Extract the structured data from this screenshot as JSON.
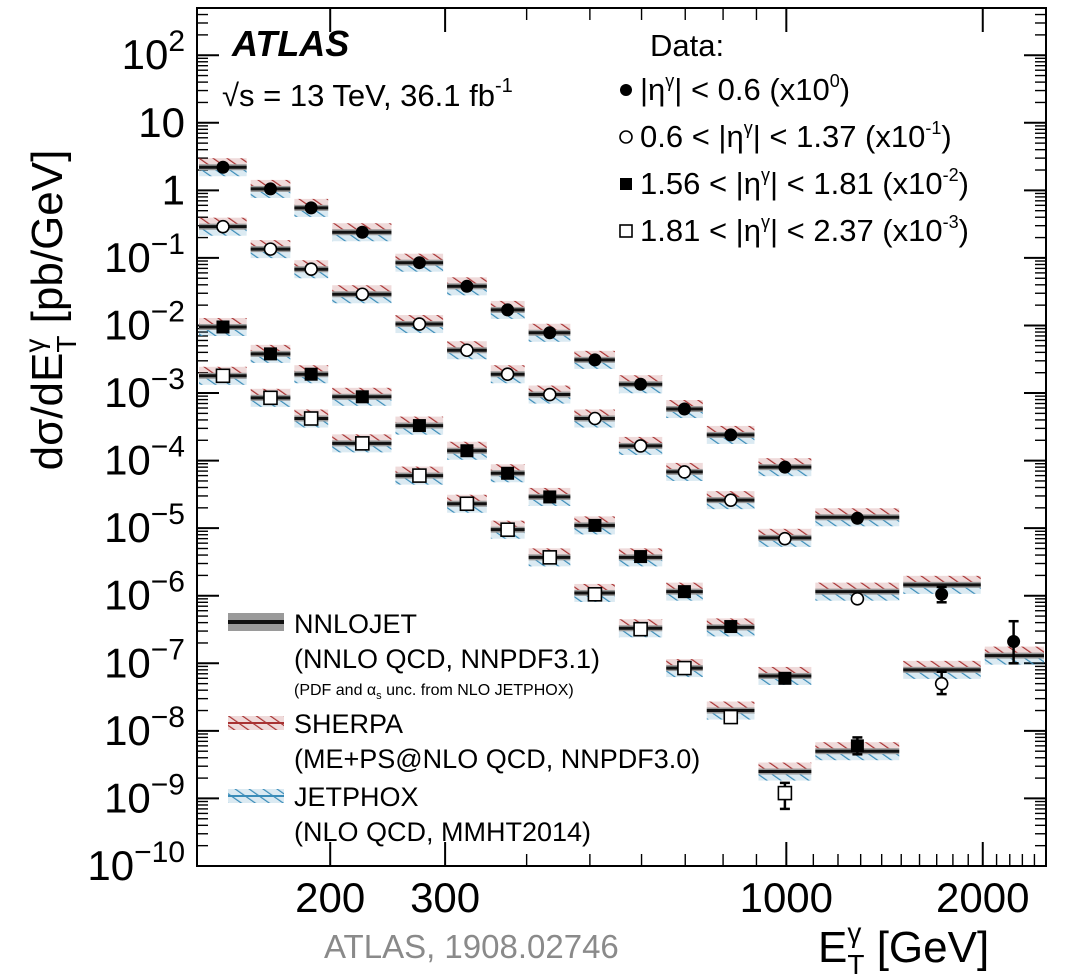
{
  "chart_data": {
    "type": "scatter",
    "x_scale": "log",
    "y_scale": "log",
    "xlim": [
      125,
      2500
    ],
    "ylim": [
      1e-10,
      500
    ],
    "xlabel": "E",
    "xlabel_sup": "γ",
    "xlabel_sub": "T",
    "xlabel_unit": " [GeV]",
    "ylabel_prefix": "dσ/dE",
    "ylabel_sup": "γ",
    "ylabel_sub": "T",
    "ylabel_unit": " [pb/GeV]",
    "x_tick_labels": [
      {
        "value": 200,
        "label": "200"
      },
      {
        "value": 300,
        "label": "300"
      },
      {
        "value": 1000,
        "label": "1000"
      },
      {
        "value": 2000,
        "label": "2000"
      }
    ],
    "y_tick_labels": [
      {
        "value": 100,
        "base": "10",
        "exp": "2"
      },
      {
        "value": 10,
        "base": "10",
        "exp": ""
      },
      {
        "value": 1,
        "base": "1",
        "exp": ""
      },
      {
        "value": 0.1,
        "base": "10",
        "exp": "−1"
      },
      {
        "value": 0.01,
        "base": "10",
        "exp": "−2"
      },
      {
        "value": 0.001,
        "base": "10",
        "exp": "−3"
      },
      {
        "value": 0.0001,
        "base": "10",
        "exp": "−4"
      },
      {
        "value": 1e-05,
        "base": "10",
        "exp": "−5"
      },
      {
        "value": 1e-06,
        "base": "10",
        "exp": "−6"
      },
      {
        "value": 1e-07,
        "base": "10",
        "exp": "−7"
      },
      {
        "value": 1e-08,
        "base": "10",
        "exp": "−8"
      },
      {
        "value": 1e-09,
        "base": "10",
        "exp": "−9"
      },
      {
        "value": 1e-10,
        "base": "10",
        "exp": "−10"
      }
    ],
    "experiment_label": "ATLAS",
    "energy_label": {
      "text": "√s = 13 TeV, 36.1 fb",
      "sup": "-1"
    },
    "data_legend_title": "Data:",
    "citation": "ATLAS, 1908.02746",
    "bins": [
      {
        "lo": 125,
        "hi": 150
      },
      {
        "lo": 150,
        "hi": 175
      },
      {
        "lo": 175,
        "hi": 200
      },
      {
        "lo": 200,
        "hi": 250
      },
      {
        "lo": 250,
        "hi": 300
      },
      {
        "lo": 300,
        "hi": 350
      },
      {
        "lo": 350,
        "hi": 400
      },
      {
        "lo": 400,
        "hi": 470
      },
      {
        "lo": 470,
        "hi": 550
      },
      {
        "lo": 550,
        "hi": 650
      },
      {
        "lo": 650,
        "hi": 750
      },
      {
        "lo": 750,
        "hi": 900
      },
      {
        "lo": 900,
        "hi": 1100
      },
      {
        "lo": 1100,
        "hi": 1500
      },
      {
        "lo": 1500,
        "hi": 2000
      },
      {
        "lo": 2000,
        "hi": 2500
      }
    ],
    "series": [
      {
        "marker": "filled-circle",
        "legend": {
          "pre": "|η",
          "sup1": "γ",
          "mid": "| < 0.6 (x10",
          "sup2": "0",
          "post": ")"
        },
        "points": [
          {
            "x": 137,
            "y": 2.2,
            "err": null
          },
          {
            "x": 162,
            "y": 1.05,
            "err": null
          },
          {
            "x": 187,
            "y": 0.55,
            "err": null
          },
          {
            "x": 224,
            "y": 0.24,
            "err": null
          },
          {
            "x": 274,
            "y": 0.085,
            "err": null
          },
          {
            "x": 324,
            "y": 0.038,
            "err": null
          },
          {
            "x": 374,
            "y": 0.017,
            "err": null
          },
          {
            "x": 434,
            "y": 0.0078,
            "err": null
          },
          {
            "x": 509,
            "y": 0.0031,
            "err": null
          },
          {
            "x": 598,
            "y": 0.00135,
            "err": null
          },
          {
            "x": 698,
            "y": 0.00058,
            "err": null
          },
          {
            "x": 822,
            "y": 0.00024,
            "err": null
          },
          {
            "x": 995,
            "y": 8e-05,
            "err": null
          },
          {
            "x": 1285,
            "y": 1.4e-05,
            "err": null
          },
          {
            "x": 1730,
            "y": 1.05e-06,
            "err": [
              8e-07,
              1.35e-06
            ]
          },
          {
            "x": 2230,
            "y": 2.1e-07,
            "err": [
              1e-07,
              4.2e-07
            ]
          }
        ],
        "theory": [
          2.2,
          1.05,
          0.55,
          0.24,
          0.085,
          0.038,
          0.017,
          0.0078,
          0.0031,
          0.00135,
          0.00058,
          0.00024,
          8e-05,
          1.45e-05,
          1.45e-06,
          1.3e-07
        ]
      },
      {
        "marker": "open-circle",
        "legend": {
          "pre": "0.6 < |η",
          "sup1": "γ",
          "mid": "| < 1.37 (x10",
          "sup2": "-1",
          "post": ")"
        },
        "points": [
          {
            "x": 137,
            "y": 0.29,
            "err": null
          },
          {
            "x": 162,
            "y": 0.135,
            "err": null
          },
          {
            "x": 187,
            "y": 0.068,
            "err": null
          },
          {
            "x": 224,
            "y": 0.029,
            "err": null
          },
          {
            "x": 274,
            "y": 0.0105,
            "err": null
          },
          {
            "x": 324,
            "y": 0.0043,
            "err": null
          },
          {
            "x": 374,
            "y": 0.0019,
            "err": null
          },
          {
            "x": 434,
            "y": 0.00095,
            "err": null
          },
          {
            "x": 509,
            "y": 0.00042,
            "err": null
          },
          {
            "x": 598,
            "y": 0.000165,
            "err": null
          },
          {
            "x": 698,
            "y": 6.8e-05,
            "err": null
          },
          {
            "x": 822,
            "y": 2.6e-05,
            "err": null
          },
          {
            "x": 995,
            "y": 7e-06,
            "err": null
          },
          {
            "x": 1285,
            "y": 9e-07,
            "err": null
          },
          {
            "x": 1730,
            "y": 5e-08,
            "err": [
              3.5e-08,
              7.5e-08
            ]
          }
        ],
        "theory": [
          0.29,
          0.135,
          0.068,
          0.029,
          0.0105,
          0.0043,
          0.0019,
          0.00095,
          0.00042,
          0.000165,
          6.8e-05,
          2.6e-05,
          7.2e-06,
          1.15e-06,
          8e-08,
          null
        ]
      },
      {
        "marker": "filled-square",
        "legend": {
          "pre": "1.56 < |η",
          "sup1": "γ",
          "mid": "| < 1.81 (x10",
          "sup2": "-2",
          "post": ")"
        },
        "points": [
          {
            "x": 137,
            "y": 0.0095,
            "err": null
          },
          {
            "x": 162,
            "y": 0.0038,
            "err": null
          },
          {
            "x": 187,
            "y": 0.0019,
            "err": null
          },
          {
            "x": 224,
            "y": 0.00088,
            "err": null
          },
          {
            "x": 274,
            "y": 0.00033,
            "err": null
          },
          {
            "x": 324,
            "y": 0.00014,
            "err": null
          },
          {
            "x": 374,
            "y": 6.5e-05,
            "err": null
          },
          {
            "x": 434,
            "y": 2.9e-05,
            "err": null
          },
          {
            "x": 509,
            "y": 1.1e-05,
            "err": null
          },
          {
            "x": 598,
            "y": 3.8e-06,
            "err": null
          },
          {
            "x": 698,
            "y": 1.15e-06,
            "err": null
          },
          {
            "x": 822,
            "y": 3.5e-07,
            "err": null
          },
          {
            "x": 995,
            "y": 6e-08,
            "err": null
          },
          {
            "x": 1285,
            "y": 6e-09,
            "err": [
              4.5e-09,
              8e-09
            ]
          }
        ],
        "theory": [
          0.0095,
          0.0038,
          0.0019,
          0.00088,
          0.00033,
          0.00014,
          6.5e-05,
          2.9e-05,
          1.1e-05,
          3.7e-06,
          1.15e-06,
          3.4e-07,
          6.5e-08,
          5e-09,
          null,
          null
        ]
      },
      {
        "marker": "open-square",
        "legend": {
          "pre": "1.81 < |η",
          "sup1": "γ",
          "mid": "| < 2.37 (x10",
          "sup2": "-3",
          "post": ")"
        },
        "points": [
          {
            "x": 137,
            "y": 0.0018,
            "err": null
          },
          {
            "x": 162,
            "y": 0.00085,
            "err": null
          },
          {
            "x": 187,
            "y": 0.00042,
            "err": null
          },
          {
            "x": 224,
            "y": 0.00018,
            "err": null
          },
          {
            "x": 274,
            "y": 6e-05,
            "err": null
          },
          {
            "x": 324,
            "y": 2.3e-05,
            "err": null
          },
          {
            "x": 374,
            "y": 9.5e-06,
            "err": null
          },
          {
            "x": 434,
            "y": 3.7e-06,
            "err": null
          },
          {
            "x": 509,
            "y": 1.05e-06,
            "err": null
          },
          {
            "x": 598,
            "y": 3.2e-07,
            "err": null
          },
          {
            "x": 698,
            "y": 8.5e-08,
            "err": null
          },
          {
            "x": 822,
            "y": 1.6e-08,
            "err": null
          },
          {
            "x": 995,
            "y": 1.2e-09,
            "err": [
              7e-10,
              1.7e-09
            ]
          }
        ],
        "theory": [
          0.0018,
          0.00085,
          0.00042,
          0.00018,
          6e-05,
          2.3e-05,
          9.5e-06,
          3.7e-06,
          1.1e-06,
          3.3e-07,
          8.5e-08,
          2e-08,
          2.5e-09,
          null,
          null,
          null
        ]
      }
    ],
    "models": [
      {
        "name": "NNLOJET",
        "detail": "(NNLO QCD, NNPDF3.1)",
        "note": "(PDF and α",
        "note_sub": "s",
        "note_post": " unc. from NLO JETPHOX)",
        "color": "#222222",
        "style": "band"
      },
      {
        "name": "SHERPA",
        "detail": "(ME+PS@NLO QCD, NNPDF3.0)",
        "color": "#a83232",
        "style": "hatch"
      },
      {
        "name": "JETPHOX",
        "detail": "(NLO QCD, MMHT2014)",
        "color": "#3a8cb8",
        "style": "hatch"
      }
    ]
  }
}
